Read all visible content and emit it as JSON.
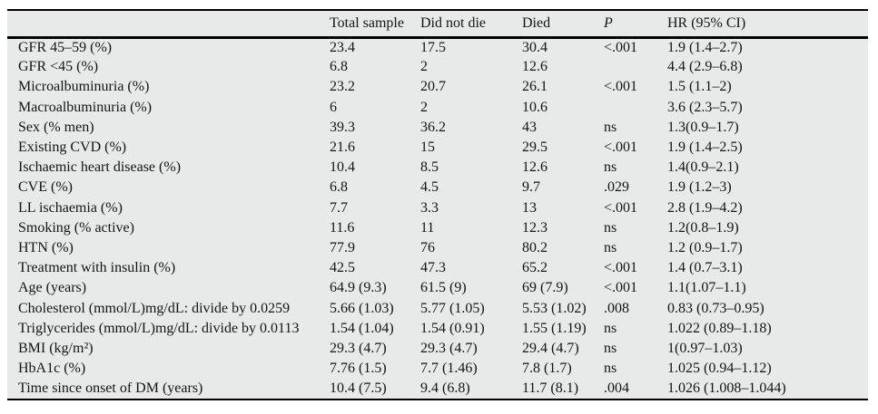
{
  "colors": {
    "table_bg": "#e8eae9",
    "rule": "#000000",
    "text": "#141414"
  },
  "table": {
    "columns": [
      "",
      "Total sample",
      "Did not die",
      "Died",
      "P",
      "HR (95% CI)"
    ],
    "rows": [
      {
        "label": "GFR 45–59 (%)",
        "total_sample": "23.4",
        "did_not_die": "17.5",
        "died": "30.4",
        "p": "<.001",
        "hr_95_ci": "1.9 (1.4–2.7)"
      },
      {
        "label": "GFR <45 (%)",
        "total_sample": "6.8",
        "did_not_die": "2",
        "died": "12.6",
        "p": "",
        "hr_95_ci": "4.4 (2.9–6.8)"
      },
      {
        "label": "Microalbuminuria (%)",
        "total_sample": "23.2",
        "did_not_die": "20.7",
        "died": "26.1",
        "p": "<.001",
        "hr_95_ci": "1.5 (1.1–2)"
      },
      {
        "label": "Macroalbuminuria (%)",
        "total_sample": "6",
        "did_not_die": "2",
        "died": "10.6",
        "p": "",
        "hr_95_ci": "3.6 (2.3–5.7)"
      },
      {
        "label": "Sex (% men)",
        "total_sample": "39.3",
        "did_not_die": "36.2",
        "died": "43",
        "p": "ns",
        "hr_95_ci": "1.3(0.9–1.7)"
      },
      {
        "label": "Existing CVD (%)",
        "total_sample": "21.6",
        "did_not_die": "15",
        "died": "29.5",
        "p": "<.001",
        "hr_95_ci": "1.9 (1.4–2.5)"
      },
      {
        "label": "Ischaemic heart disease (%)",
        "total_sample": "10.4",
        "did_not_die": "8.5",
        "died": "12.6",
        "p": "ns",
        "hr_95_ci": "1.4(0.9–2.1)"
      },
      {
        "label": "CVE (%)",
        "total_sample": "6.8",
        "did_not_die": "4.5",
        "died": "9.7",
        "p": ".029",
        "hr_95_ci": "1.9 (1.2–3)"
      },
      {
        "label": "LL ischaemia (%)",
        "total_sample": "7.7",
        "did_not_die": "3.3",
        "died": "13",
        "p": "<.001",
        "hr_95_ci": "2.8 (1.9–4.2)"
      },
      {
        "label": "Smoking (% active)",
        "total_sample": "11.6",
        "did_not_die": "11",
        "died": "12.3",
        "p": "ns",
        "hr_95_ci": "1.2(0.8–1.9)"
      },
      {
        "label": "HTN (%)",
        "total_sample": "77.9",
        "did_not_die": "76",
        "died": "80.2",
        "p": "ns",
        "hr_95_ci": "1.2 (0.9–1.7)"
      },
      {
        "label": "Treatment with insulin (%)",
        "total_sample": "42.5",
        "did_not_die": "47.3",
        "died": "65.2",
        "p": "<.001",
        "hr_95_ci": "1.4 (0.7–3.1)"
      },
      {
        "label": "Age (years)",
        "total_sample": "64.9 (9.3)",
        "did_not_die": "61.5 (9)",
        "died": "69 (7.9)",
        "p": "<.001",
        "hr_95_ci": "1.1(1.07–1.1)"
      },
      {
        "label": "Cholesterol (mmol/L)mg/dL: divide by 0.0259",
        "total_sample": "5.66 (1.03)",
        "did_not_die": "5.77 (1.05)",
        "died": "5.53 (1.02)",
        "p": ".008",
        "hr_95_ci": "0.83 (0.73–0.95)"
      },
      {
        "label": "Triglycerides (mmol/L)mg/dL: divide by 0.0113",
        "total_sample": "1.54 (1.04)",
        "did_not_die": "1.54 (0.91)",
        "died": "1.55 (1.19)",
        "p": "ns",
        "hr_95_ci": "1.022 (0.89–1.18)"
      },
      {
        "label": "BMI (kg/m²)",
        "total_sample": "29.3 (4.7)",
        "did_not_die": "29.3 (4.7)",
        "died": "29.4 (4.7)",
        "p": "ns",
        "hr_95_ci": "1(0.97–1.03)"
      },
      {
        "label": "HbA1c (%)",
        "total_sample": "7.76 (1.5)",
        "did_not_die": "7.7 (1.46)",
        "died": "7.8 (1.7)",
        "p": "ns",
        "hr_95_ci": "1.025 (0.94–1.12)"
      },
      {
        "label": "Time since onset of DM (years)",
        "total_sample": "10.4 (7.5)",
        "did_not_die": "9.4 (6.8)",
        "died": "11.7 (8.1)",
        "p": ".004",
        "hr_95_ci": "1.026 (1.008–1.044)"
      }
    ]
  }
}
